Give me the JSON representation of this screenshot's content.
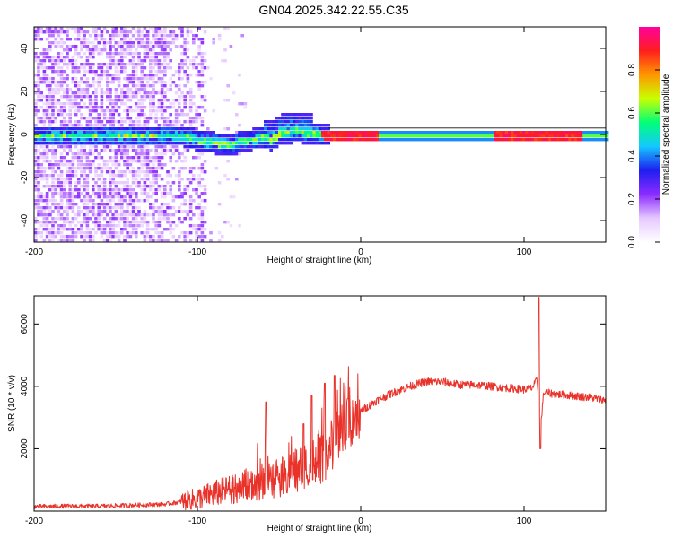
{
  "title": "GN04.2025.342.22.55.C35",
  "chart_data": [
    {
      "type": "heatmap",
      "name": "spectrogram",
      "xlabel": "Height of straight line (km)",
      "ylabel": "Frequency (Hz)",
      "xlim": [
        -200,
        150
      ],
      "ylim": [
        -50,
        50
      ],
      "x_ticks": [
        "-200",
        "-100",
        "0",
        "100"
      ],
      "x_tick_values": [
        -200,
        -100,
        0,
        100
      ],
      "y_ticks": [
        "40",
        "20",
        "0",
        "-20",
        "-40"
      ],
      "y_tick_values": [
        40,
        20,
        0,
        -20,
        -40
      ],
      "colorbar": {
        "label": "Normalized spectral amplitude",
        "range": [
          0,
          1
        ],
        "ticks": [
          "0.0",
          "0.2",
          "0.4",
          "0.6",
          "0.8"
        ],
        "tick_values": [
          0.0,
          0.2,
          0.4,
          0.6,
          0.8
        ],
        "colors": [
          "#ffffff",
          "#e6c8ff",
          "#8c2cff",
          "#1e1ef0",
          "#14c8ff",
          "#00ff78",
          "#c8ff00",
          "#ff9600",
          "#ff1e1e",
          "#ff00a0"
        ]
      },
      "features": {
        "noise_region_x": [
          -200,
          -100
        ],
        "band_center_hz": [
          {
            "x": -110,
            "f": 0
          },
          {
            "x": -95,
            "f": -3
          },
          {
            "x": -80,
            "f": -4
          },
          {
            "x": -70,
            "f": -2
          },
          {
            "x": -60,
            "f": -1
          },
          {
            "x": -55,
            "f": -2
          },
          {
            "x": -50,
            "f": 1
          },
          {
            "x": -40,
            "f": 2
          },
          {
            "x": -30,
            "f": 1
          },
          {
            "x": -20,
            "f": 0
          },
          {
            "x": 0,
            "f": 0
          },
          {
            "x": 150,
            "f": 0
          }
        ],
        "hot_spots_x": [
          -15,
          0,
          90,
          110,
          125
        ]
      }
    },
    {
      "type": "line",
      "name": "snr",
      "xlabel": "Height of straight line (km)",
      "ylabel": "SNR (10 * v/v)",
      "xlim": [
        -200,
        150
      ],
      "ylim": [
        0,
        6900
      ],
      "x_ticks": [
        "-200",
        "-100",
        "0",
        "100"
      ],
      "x_tick_values": [
        -200,
        -100,
        0,
        100
      ],
      "y_ticks": [
        "6000",
        "4000",
        "2000"
      ],
      "y_tick_values": [
        6000,
        4000,
        2000
      ],
      "series": [
        {
          "name": "SNR",
          "color": "#e8322a",
          "x": [
            -200,
            -180,
            -160,
            -140,
            -120,
            -110,
            -100,
            -90,
            -80,
            -70,
            -60,
            -55,
            -50,
            -45,
            -40,
            -35,
            -30,
            -25,
            -20,
            -15,
            -10,
            -5,
            0,
            10,
            20,
            30,
            40,
            50,
            60,
            70,
            80,
            90,
            100,
            105,
            108,
            110,
            112,
            120,
            130,
            140,
            150
          ],
          "y": [
            150,
            160,
            160,
            190,
            220,
            300,
            400,
            560,
            700,
            850,
            950,
            1000,
            1100,
            1250,
            1300,
            1350,
            1500,
            1600,
            1900,
            2400,
            2700,
            3000,
            3200,
            3550,
            3800,
            4000,
            4150,
            4150,
            4050,
            4050,
            4000,
            3950,
            3900,
            3950,
            4200,
            2600,
            3800,
            3750,
            3700,
            3650,
            3550
          ],
          "spikes": [
            {
              "x": -58,
              "y": 3500
            },
            {
              "x": -35,
              "y": 2800
            },
            {
              "x": -30,
              "y": 3700
            },
            {
              "x": -22,
              "y": 4100
            },
            {
              "x": -16,
              "y": 4350
            },
            {
              "x": -8,
              "y": 3600
            },
            {
              "x": 109,
              "y": 6850
            },
            {
              "x": 110,
              "y": 2000
            }
          ]
        }
      ]
    }
  ]
}
